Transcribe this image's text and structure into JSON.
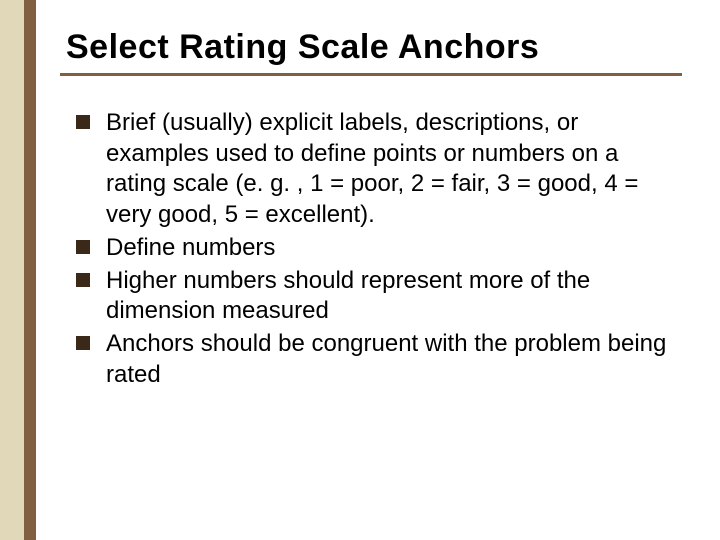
{
  "slide": {
    "title": "Select Rating Scale Anchors",
    "bullets": [
      "Brief (usually) explicit labels, descriptions, or examples used to define points or numbers on a rating scale (e. g. , 1 = poor, 2 = fair, 3 = good, 4 = very good, 5 = excellent).",
      "Define numbers",
      "Higher numbers should represent more of the dimension measured",
      "Anchors should be congruent with the problem being rated"
    ]
  },
  "styling": {
    "background_color": "#ffffff",
    "sidebar_outer_color": "#e0d8b8",
    "sidebar_inner_color": "#806040",
    "title_color": "#000000",
    "title_fontsize": 34,
    "title_underline_color": "#806040",
    "body_text_color": "#000000",
    "body_fontsize": 24,
    "bullet_marker_color": "#3a2818",
    "bullet_marker_size": 14,
    "font_family": "Comic Sans MS"
  }
}
